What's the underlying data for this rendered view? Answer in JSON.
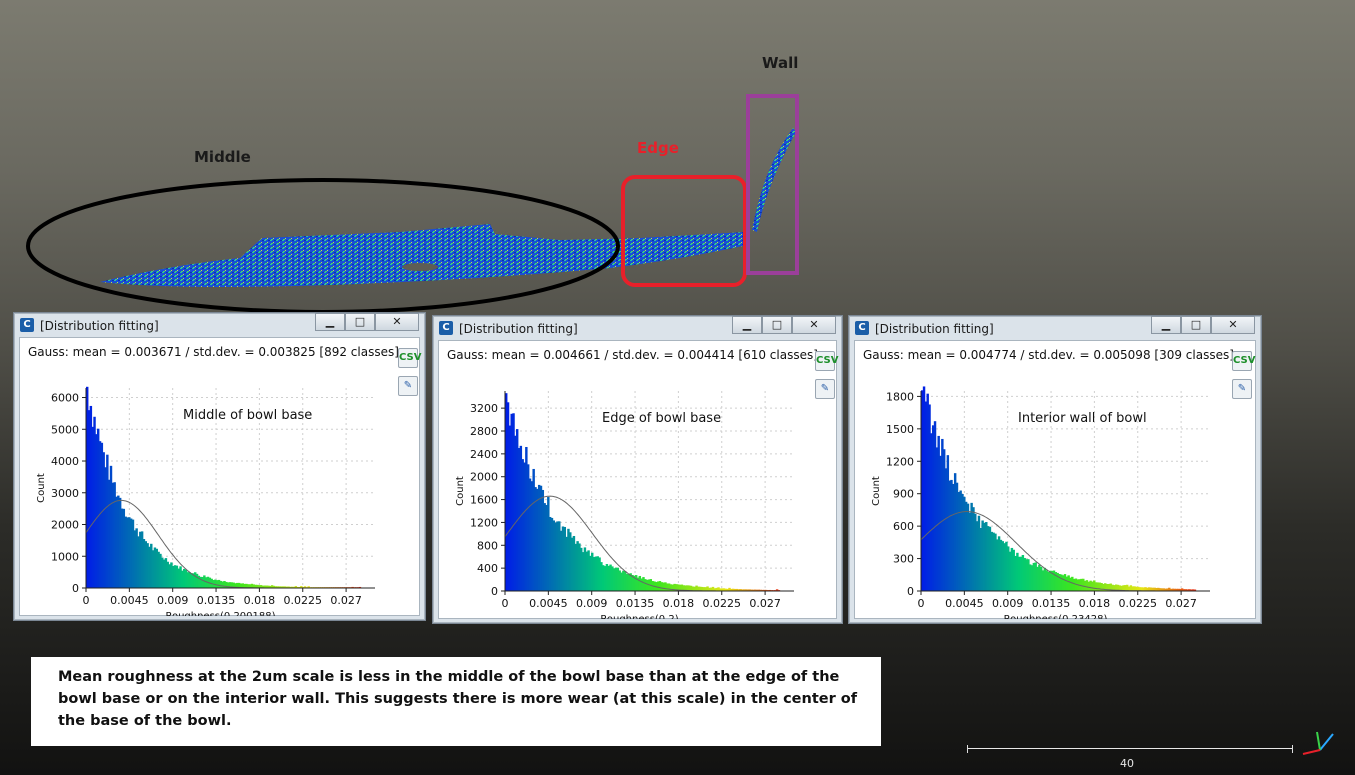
{
  "viewport": {
    "labels": {
      "middle": "Middle",
      "edge": "Edge",
      "wall": "Wall"
    },
    "colors": {
      "middle": "#1a1a1a",
      "edge": "#e8202a",
      "wall": "#1a1a1a",
      "ellipse": "#000000",
      "edge_box": "#e8202a",
      "wall_box": "#9b3f9a"
    }
  },
  "windows": [
    {
      "title": "[Distribution fitting]",
      "buttons": {
        "minimize": "▁",
        "maximize": "□",
        "close": "✕"
      },
      "gauss": "Gauss: mean = 0.003671 / std.dev. = 0.003825 [892 classes]",
      "annotation": "Middle of bowl base",
      "ylabel": "Count",
      "xlabel": "Roughness(0.200188)",
      "yticks": [
        "0",
        "1000",
        "2000",
        "3000",
        "4000",
        "5000",
        "6000"
      ],
      "xticks": [
        "0",
        "0.0045",
        "0.009",
        "0.0135",
        "0.018",
        "0.0225",
        "0.027"
      ],
      "chart_data": {
        "type": "bar",
        "title": "Middle of bowl base",
        "xlabel": "Roughness(0.200188)",
        "ylabel": "Count",
        "xlim": [
          0,
          0.03
        ],
        "ylim": [
          0,
          6300
        ],
        "histogram_peak": 6350,
        "histogram_decay": 0.0042,
        "gauss_mean": 0.003671,
        "gauss_std": 0.003825,
        "gauss_peak": 2760
      }
    },
    {
      "title": "[Distribution fitting]",
      "buttons": {
        "minimize": "▁",
        "maximize": "□",
        "close": "✕"
      },
      "gauss": "Gauss: mean = 0.004661 / std.dev. = 0.004414 [610 classes]",
      "annotation": "Edge of bowl base",
      "ylabel": "Count",
      "xlabel": "Roughness(0.2)",
      "yticks": [
        "0",
        "400",
        "800",
        "1200",
        "1600",
        "2000",
        "2400",
        "2800",
        "3200"
      ],
      "xticks": [
        "0",
        "0.0045",
        "0.009",
        "0.0135",
        "0.018",
        "0.0225",
        "0.027"
      ],
      "chart_data": {
        "type": "bar",
        "title": "Edge of bowl base",
        "xlabel": "Roughness(0.2)",
        "ylabel": "Count",
        "xlim": [
          0,
          0.03
        ],
        "ylim": [
          0,
          3500
        ],
        "histogram_peak": 3450,
        "histogram_decay": 0.0052,
        "gauss_mean": 0.004661,
        "gauss_std": 0.004414,
        "gauss_peak": 1660
      }
    },
    {
      "title": "[Distribution fitting]",
      "buttons": {
        "minimize": "▁",
        "maximize": "□",
        "close": "✕"
      },
      "gauss": "Gauss: mean = 0.004774 / std.dev. = 0.005098 [309 classes]",
      "annotation": "Interior wall of bowl",
      "ylabel": "Count",
      "xlabel": "Roughness(0.23428)",
      "yticks": [
        "0",
        "300",
        "600",
        "900",
        "1200",
        "1500",
        "1800"
      ],
      "xticks": [
        "0",
        "0.0045",
        "0.009",
        "0.0135",
        "0.018",
        "0.0225",
        "0.027"
      ],
      "chart_data": {
        "type": "bar",
        "title": "Interior wall of bowl",
        "xlabel": "Roughness(0.23428)",
        "ylabel": "Count",
        "xlim": [
          0,
          0.03
        ],
        "ylim": [
          0,
          1850
        ],
        "histogram_peak": 1840,
        "histogram_decay": 0.0058,
        "gauss_mean": 0.004774,
        "gauss_std": 0.005098,
        "gauss_peak": 735
      }
    }
  ],
  "note": {
    "text": "Mean roughness at the 2um scale is less in the middle of the bowl base than at the edge of the bowl base or on the interior wall. This suggests there is more wear (at this scale) in the center of the base of the bowl."
  },
  "scale": {
    "value": "40"
  },
  "icons": {
    "window": "cc-logo-icon",
    "export": "csv-export-icon",
    "tool": "picker-icon"
  }
}
